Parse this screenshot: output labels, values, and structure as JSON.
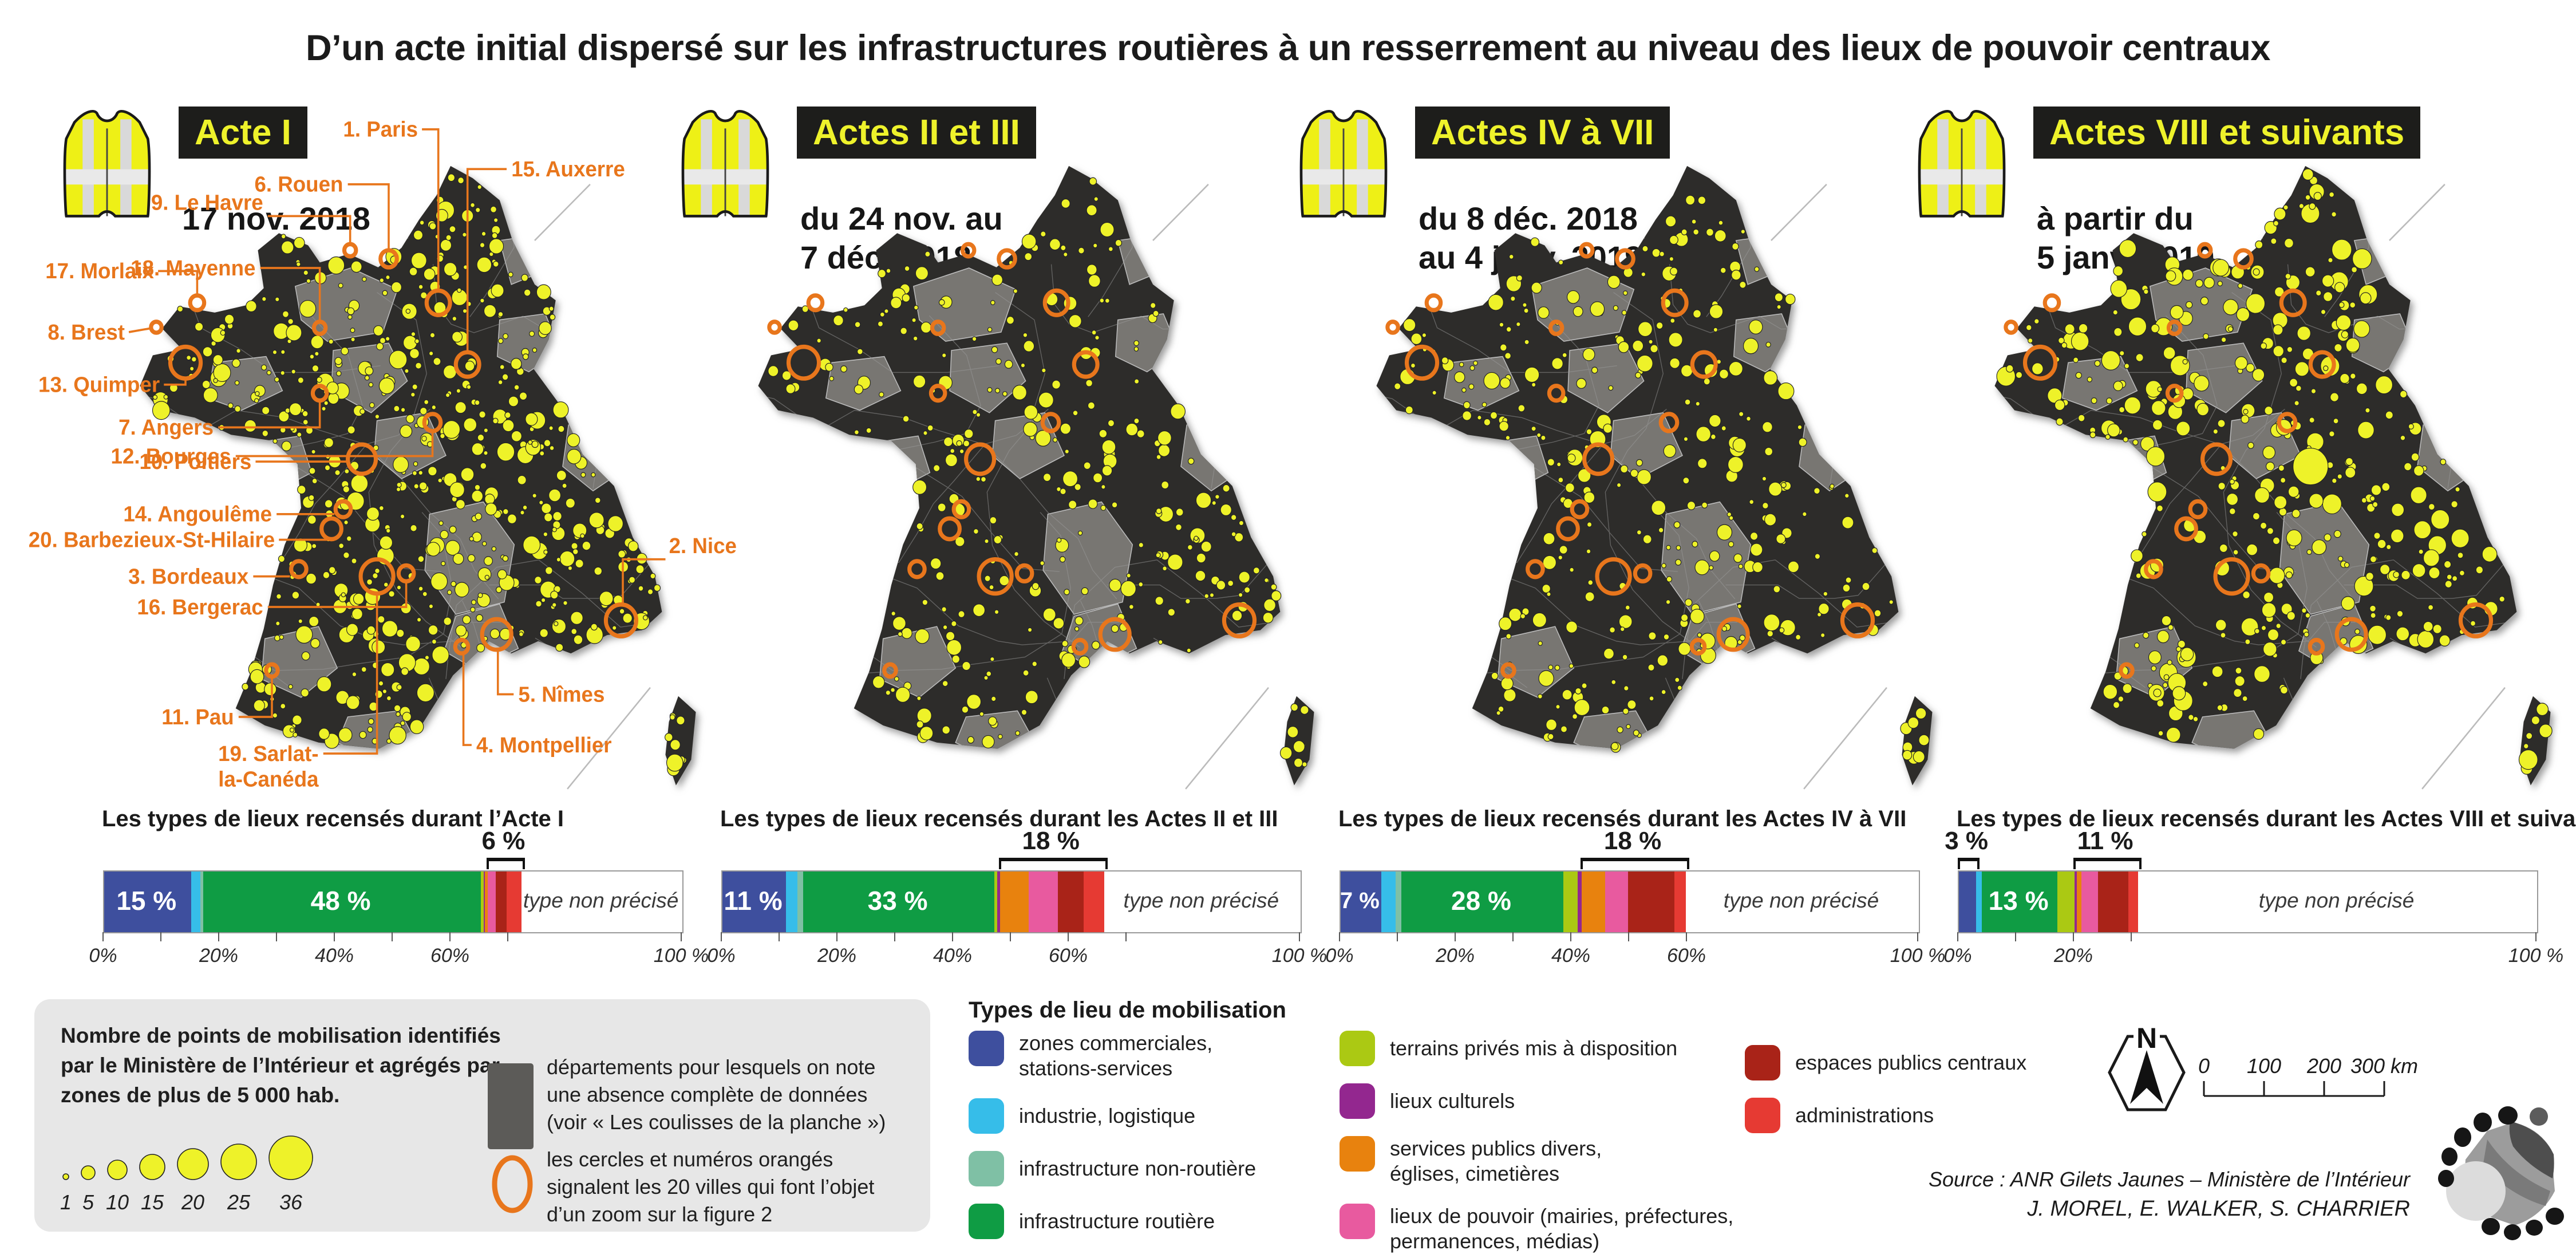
{
  "title": "D’un acte initial dispersé sur les infrastructures routières à un resserrement au niveau des lieux de pouvoir centraux",
  "colors": {
    "accent_orange": "#e8761c",
    "map_dark": "#2d2c2a",
    "map_nodata_grey": "#787672",
    "dot_yellow": "#eef229",
    "badge_bg": "#1d1d1b",
    "badge_text": "#eef22b",
    "types": {
      "zones_commerciales": "#3e4f9e",
      "industrie": "#36bde9",
      "infra_non_routiere": "#7fc0a5",
      "infra_routiere": "#0f9c44",
      "terrains_prives": "#abc913",
      "lieux_culturels": "#93278f",
      "services_publics": "#e8820e",
      "lieux_pouvoir": "#e85a9f",
      "espaces_publics": "#a92318",
      "administrations": "#e63a33"
    }
  },
  "panels": [
    {
      "badge": "Acte I",
      "date_lines": [
        "17 nov. 2018"
      ],
      "map": {
        "dot_count": 620,
        "seed": 11,
        "rmin": 3.5,
        "rmax": 15,
        "extra_dots": [
          [
            940,
            1005,
            14
          ]
        ]
      }
    },
    {
      "badge": "Actes II et III",
      "date_lines": [
        "du 24 nov. au",
        "7 déc. 2018"
      ],
      "map": {
        "dot_count": 300,
        "seed": 22,
        "rmin": 3.5,
        "rmax": 13,
        "extra_dots": []
      }
    },
    {
      "badge": "Actes IV à VII",
      "date_lines": [
        "du 8 déc. 2018",
        "au 4 janv. 2019"
      ],
      "map": {
        "dot_count": 330,
        "seed": 33,
        "rmin": 3.5,
        "rmax": 14,
        "extra_dots": []
      }
    },
    {
      "badge": "Actes VIII et suivants",
      "date_lines": [
        "à partir du",
        "5 janv. 2019"
      ],
      "map": {
        "dot_count": 400,
        "seed": 44,
        "rmin": 4,
        "rmax": 17,
        "extra_dots": [
          [
            565,
            520,
            30
          ],
          [
            938,
            1000,
            16
          ]
        ]
      }
    }
  ],
  "map_rings": [
    [
      535,
      252,
      20
    ],
    [
      585,
      353,
      20
    ],
    [
      450,
      180,
      14
    ],
    [
      384,
      166,
      10
    ],
    [
      332,
      293,
      10
    ],
    [
      122,
      252,
      12
    ],
    [
      52,
      292,
      9
    ],
    [
      102,
      350,
      26
    ],
    [
      332,
      400,
      12
    ],
    [
      525,
      448,
      14
    ],
    [
      404,
      508,
      24
    ],
    [
      372,
      590,
      13
    ],
    [
      352,
      622,
      17
    ],
    [
      296,
      688,
      13
    ],
    [
      480,
      695,
      13
    ],
    [
      250,
      854,
      10
    ],
    [
      430,
      700,
      28
    ],
    [
      575,
      815,
      11
    ],
    [
      635,
      795,
      25
    ],
    [
      848,
      772,
      26
    ]
  ],
  "cities": [
    {
      "label": [
        "1. Paris"
      ],
      "tx": 500,
      "ty": -20,
      "anchor": "end",
      "line": [
        [
          507,
          -32
        ],
        [
          535,
          -32
        ],
        [
          535,
          230
        ]
      ]
    },
    {
      "label": [
        "15. Auxerre"
      ],
      "tx": 660,
      "ty": 45,
      "anchor": "start",
      "line": [
        [
          652,
          33
        ],
        [
          585,
          33
        ],
        [
          585,
          331
        ]
      ]
    },
    {
      "label": [
        "6. Rouen"
      ],
      "tx": 372,
      "ty": 70,
      "anchor": "end",
      "line": [
        [
          380,
          58
        ],
        [
          450,
          58
        ],
        [
          450,
          164
        ]
      ]
    },
    {
      "label": [
        "9. Le Havre"
      ],
      "tx": 235,
      "ty": 100,
      "anchor": "end",
      "line": [
        [
          243,
          110
        ],
        [
          384,
          110
        ],
        [
          384,
          154
        ]
      ]
    },
    {
      "label": [
        "18. Mayenne"
      ],
      "tx": 222,
      "ty": 207,
      "anchor": "end",
      "line": [
        [
          230,
          195
        ],
        [
          332,
          195
        ],
        [
          332,
          281
        ]
      ]
    },
    {
      "label": [
        "17. Morlaix"
      ],
      "tx": 48,
      "ty": 212,
      "anchor": "end",
      "line": [
        [
          55,
          200
        ],
        [
          122,
          200
        ],
        [
          122,
          238
        ]
      ]
    },
    {
      "label": [
        "8. Brest"
      ],
      "tx": -2,
      "ty": 312,
      "anchor": "end",
      "line": [
        [
          5,
          300
        ],
        [
          41,
          294
        ]
      ]
    },
    {
      "label": [
        "13. Quimper"
      ],
      "tx": 58,
      "ty": 398,
      "anchor": "end",
      "line": [
        [
          65,
          386
        ],
        [
          102,
          386
        ],
        [
          102,
          378
        ]
      ]
    },
    {
      "label": [
        "7. Angers"
      ],
      "tx": 150,
      "ty": 468,
      "anchor": "end",
      "line": [
        [
          158,
          456
        ],
        [
          332,
          456
        ],
        [
          332,
          414
        ]
      ]
    },
    {
      "label": [
        "12. Bourges"
      ],
      "tx": 180,
      "ty": 515,
      "anchor": "end",
      "line": [
        [
          188,
          503
        ],
        [
          525,
          503
        ],
        [
          525,
          464
        ]
      ]
    },
    {
      "label": [
        "10. Poitiers"
      ],
      "tx": 215,
      "ty": 524,
      "anchor": "end",
      "line": [
        [
          222,
          512
        ],
        [
          378,
          512
        ]
      ]
    },
    {
      "label": [
        "14. Angoulême"
      ],
      "tx": 250,
      "ty": 610,
      "anchor": "end",
      "line": [
        [
          258,
          598
        ],
        [
          357,
          598
        ]
      ]
    },
    {
      "label": [
        "20. Barbezieux-St-Hilaire"
      ],
      "tx": 255,
      "ty": 652,
      "anchor": "end",
      "line": [
        [
          262,
          640
        ],
        [
          350,
          640
        ]
      ]
    },
    {
      "label": [
        "3. Bordeaux"
      ],
      "tx": 210,
      "ty": 712,
      "anchor": "end",
      "line": [
        [
          218,
          700
        ],
        [
          281,
          700
        ]
      ]
    },
    {
      "label": [
        "16. Bergerac"
      ],
      "tx": 235,
      "ty": 762,
      "anchor": "end",
      "line": [
        [
          243,
          750
        ],
        [
          480,
          750
        ],
        [
          480,
          710
        ]
      ]
    },
    {
      "label": [
        "11. Pau"
      ],
      "tx": 185,
      "ty": 942,
      "anchor": "end",
      "line": [
        [
          193,
          930
        ],
        [
          250,
          930
        ],
        [
          250,
          866
        ]
      ]
    },
    {
      "label": [
        "19. Sarlat-",
        "la-Canéda"
      ],
      "tx": 330,
      "ty": 1002,
      "anchor": "end",
      "line": [
        [
          338,
          990
        ],
        [
          430,
          990
        ],
        [
          430,
          730
        ]
      ]
    },
    {
      "label": [
        "4. Montpellier"
      ],
      "tx": 600,
      "ty": 988,
      "anchor": "start",
      "line": [
        [
          592,
          976
        ],
        [
          578,
          976
        ],
        [
          578,
          828
        ]
      ]
    },
    {
      "label": [
        "5. Nîmes"
      ],
      "tx": 672,
      "ty": 905,
      "anchor": "start",
      "line": [
        [
          664,
          893
        ],
        [
          637,
          893
        ],
        [
          637,
          822
        ]
      ]
    },
    {
      "label": [
        "2. Nice"
      ],
      "tx": 930,
      "ty": 662,
      "anchor": "start",
      "line": [
        [
          924,
          672
        ],
        [
          851,
          672
        ],
        [
          851,
          744
        ]
      ]
    }
  ],
  "chart_data": {
    "type": "bar",
    "stacked": true,
    "unit": "%",
    "xlim": [
      0,
      100
    ],
    "series_keys": [
      "zones_commerciales",
      "industrie",
      "infra_non_routiere",
      "infra_routiere",
      "terrains_prives",
      "lieux_culturels",
      "services_publics",
      "lieux_pouvoir",
      "espaces_publics",
      "administrations"
    ],
    "bars": [
      {
        "title": "Les types de lieux recensés durant l’Acte I",
        "values": [
          15,
          1.6,
          0.5,
          48,
          0.5,
          0.2,
          0.5,
          1.4,
          1.9,
          2.6
        ],
        "inside_labels": [
          {
            "seg": 0,
            "text": "15 %"
          },
          {
            "seg": 3,
            "text": "48 %"
          }
        ],
        "brackets": [
          {
            "from": 7,
            "to": 9,
            "text": "6 %"
          }
        ],
        "tick_max": 70,
        "axis_labels": [
          [
            0,
            "0%"
          ],
          [
            20,
            "20%"
          ],
          [
            40,
            "40%"
          ],
          [
            60,
            "60%"
          ],
          [
            100,
            "100 %"
          ]
        ],
        "rest_label": "type non précisé"
      },
      {
        "title": "Les types de lieux recensés durant les Actes II et III",
        "values": [
          11,
          2,
          1,
          33,
          0.5,
          0.5,
          5,
          5,
          4.5,
          3.5
        ],
        "inside_labels": [
          {
            "seg": 0,
            "text": "11 %"
          },
          {
            "seg": 3,
            "text": "33 %"
          }
        ],
        "brackets": [
          {
            "from": 6,
            "to": 9,
            "text": "18 %"
          }
        ],
        "tick_max": 70,
        "axis_labels": [
          [
            0,
            "0%"
          ],
          [
            20,
            "20%"
          ],
          [
            40,
            "40%"
          ],
          [
            60,
            "60%"
          ],
          [
            100,
            "100 %"
          ]
        ],
        "rest_label": "type non précisé"
      },
      {
        "title": "Les types de lieux recensés durant les Actes IV à VII",
        "values": [
          7,
          2.5,
          1,
          28,
          2.5,
          0.7,
          4,
          4,
          8,
          2
        ],
        "inside_labels": [
          {
            "seg": 0,
            "text": "7 %"
          },
          {
            "seg": 3,
            "text": "28 %"
          }
        ],
        "brackets": [
          {
            "from": 6,
            "to": 9,
            "text": "18 %"
          }
        ],
        "tick_max": 60,
        "axis_labels": [
          [
            0,
            "0%"
          ],
          [
            20,
            "20%"
          ],
          [
            40,
            "40%"
          ],
          [
            60,
            "60%"
          ],
          [
            100,
            "100 %"
          ]
        ],
        "rest_label": "type non précisé"
      },
      {
        "title": "Les types de lieux recensés durant les Actes VIII et suivants",
        "values": [
          3,
          1,
          0,
          13,
          3,
          0.4,
          0.8,
          2.9,
          5.2,
          1.7
        ],
        "inside_labels": [
          {
            "seg": 3,
            "text": "13 %"
          }
        ],
        "brackets": [
          {
            "from": 0,
            "to": 0,
            "text": "3 %"
          },
          {
            "from": 5,
            "to": 9,
            "text": "11 %"
          }
        ],
        "tick_max": 30,
        "axis_labels": [
          [
            0,
            "0%"
          ],
          [
            20,
            "20%"
          ],
          [
            100,
            "100 %"
          ]
        ],
        "rest_label": "type non précisé"
      }
    ]
  },
  "legend": {
    "size_legend": {
      "lines": [
        "Nombre de points de mobilisation identifiés",
        "par le Ministère de l’Intérieur et agrégés par",
        "zones de plus de 5 000 hab."
      ],
      "sizes": [
        {
          "label": "1",
          "r": 5
        },
        {
          "label": "5",
          "r": 12
        },
        {
          "label": "10",
          "r": 17
        },
        {
          "label": "15",
          "r": 22
        },
        {
          "label": "20",
          "r": 27
        },
        {
          "label": "25",
          "r": 31
        },
        {
          "label": "36",
          "r": 38
        }
      ]
    },
    "no_data": {
      "lines": [
        "départements pour lesquels on note",
        "une absence complète de données",
        "(voir « Les coulisses de la planche »)"
      ]
    },
    "rings_note": {
      "lines": [
        "les cercles et numéros orangés",
        "signalent les 20 villes qui font l’objet",
        "d’un zoom sur la figure 2"
      ]
    },
    "types": {
      "title": "Types de lieu de mobilisation",
      "columns": [
        [
          {
            "key": "zones_commerciales",
            "lines": [
              "zones commerciales,",
              "stations-services"
            ]
          },
          {
            "key": "industrie",
            "lines": [
              "industrie, logistique"
            ]
          },
          {
            "key": "infra_non_routiere",
            "lines": [
              "infrastructure non-routière"
            ]
          },
          {
            "key": "infra_routiere",
            "lines": [
              "infrastructure routière"
            ]
          }
        ],
        [
          {
            "key": "terrains_prives",
            "lines": [
              "terrains privés mis à disposition"
            ]
          },
          {
            "key": "lieux_culturels",
            "lines": [
              "lieux culturels"
            ]
          },
          {
            "key": "services_publics",
            "lines": [
              "services publics divers,",
              "églises, cimetières"
            ]
          },
          {
            "key": "lieux_pouvoir",
            "lines": [
              "lieux de pouvoir (mairies, préfectures,",
              "permanences, médias)"
            ]
          }
        ],
        [
          {
            "key": "espaces_publics",
            "lines": [
              "espaces publics centraux"
            ]
          },
          {
            "key": "administrations",
            "lines": [
              "administrations"
            ]
          }
        ]
      ]
    },
    "north_label": "N",
    "scale": {
      "labels": [
        "0",
        "100",
        "200",
        "300 km"
      ],
      "km_per_tick": 100
    },
    "source_lines": [
      "Source : ANR Gilets Jaunes – Ministère de l’Intérieur",
      "J. MOREL, E. WALKER, S. CHARRIER"
    ]
  }
}
